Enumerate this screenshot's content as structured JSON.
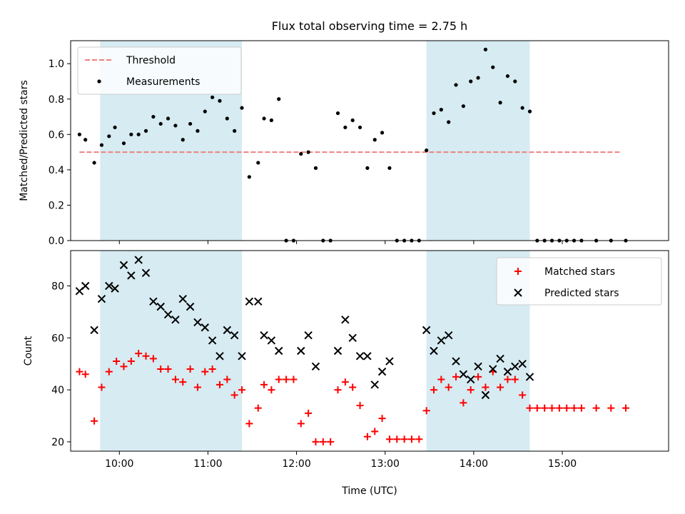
{
  "title": "Flux total observing time = 2.75 h",
  "colors": {
    "shade": "#add8e6",
    "threshold": "#f08080",
    "matched": "#ff0000",
    "predicted": "#000000",
    "measurement": "#000000"
  },
  "chart_data": [
    {
      "type": "scatter",
      "ylabel": "Matched/Predicted stars",
      "ylim": [
        0,
        1.13
      ],
      "xlim": [
        "09:27",
        "16:12"
      ],
      "yticks": [
        "0.0",
        "0.2",
        "0.4",
        "0.6",
        "0.8",
        "1.0"
      ],
      "legend_position": "upper-left",
      "shaded_intervals": [
        [
          "09:47",
          "11:23"
        ],
        [
          "13:28",
          "14:38"
        ]
      ],
      "threshold": {
        "name": "Threshold",
        "value": 0.5,
        "x_range": [
          "09:33",
          "15:40"
        ],
        "style": "dashed"
      },
      "series": [
        {
          "name": "Measurements",
          "points": [
            [
              "09:33",
              0.6
            ],
            [
              "09:37",
              0.57
            ],
            [
              "09:43",
              0.44
            ],
            [
              "09:48",
              0.54
            ],
            [
              "09:53",
              0.59
            ],
            [
              "09:57",
              0.64
            ],
            [
              "10:03",
              0.55
            ],
            [
              "10:08",
              0.6
            ],
            [
              "10:13",
              0.6
            ],
            [
              "10:18",
              0.62
            ],
            [
              "10:23",
              0.7
            ],
            [
              "10:28",
              0.66
            ],
            [
              "10:33",
              0.69
            ],
            [
              "10:38",
              0.65
            ],
            [
              "10:43",
              0.57
            ],
            [
              "10:48",
              0.66
            ],
            [
              "10:53",
              0.62
            ],
            [
              "10:58",
              0.73
            ],
            [
              "11:03",
              0.81
            ],
            [
              "11:08",
              0.79
            ],
            [
              "11:13",
              0.69
            ],
            [
              "11:18",
              0.62
            ],
            [
              "11:23",
              0.75
            ],
            [
              "11:28",
              0.36
            ],
            [
              "11:34",
              0.44
            ],
            [
              "11:38",
              0.69
            ],
            [
              "11:43",
              0.68
            ],
            [
              "11:48",
              0.8
            ],
            [
              "11:53",
              0.0
            ],
            [
              "11:58",
              0.0
            ],
            [
              "12:03",
              0.49
            ],
            [
              "12:08",
              0.5
            ],
            [
              "12:13",
              0.41
            ],
            [
              "12:18",
              0.0
            ],
            [
              "12:23",
              0.0
            ],
            [
              "12:28",
              0.72
            ],
            [
              "12:33",
              0.64
            ],
            [
              "12:38",
              0.68
            ],
            [
              "12:43",
              0.64
            ],
            [
              "12:48",
              0.41
            ],
            [
              "12:53",
              0.57
            ],
            [
              "12:58",
              0.61
            ],
            [
              "13:03",
              0.41
            ],
            [
              "13:08",
              0.0
            ],
            [
              "13:13",
              0.0
            ],
            [
              "13:18",
              0.0
            ],
            [
              "13:23",
              0.0
            ],
            [
              "13:28",
              0.51
            ],
            [
              "13:33",
              0.72
            ],
            [
              "13:38",
              0.74
            ],
            [
              "13:43",
              0.67
            ],
            [
              "13:48",
              0.88
            ],
            [
              "13:53",
              0.76
            ],
            [
              "13:58",
              0.9
            ],
            [
              "14:03",
              0.92
            ],
            [
              "14:08",
              1.08
            ],
            [
              "14:13",
              0.98
            ],
            [
              "14:18",
              0.78
            ],
            [
              "14:23",
              0.93
            ],
            [
              "14:28",
              0.9
            ],
            [
              "14:33",
              0.75
            ],
            [
              "14:38",
              0.73
            ],
            [
              "14:43",
              0.0
            ],
            [
              "14:48",
              0.0
            ],
            [
              "14:53",
              0.0
            ],
            [
              "14:58",
              0.0
            ],
            [
              "15:03",
              0.0
            ],
            [
              "15:08",
              0.0
            ],
            [
              "15:13",
              0.0
            ],
            [
              "15:23",
              0.0
            ],
            [
              "15:33",
              0.0
            ],
            [
              "15:43",
              0.0
            ]
          ]
        }
      ]
    },
    {
      "type": "scatter",
      "ylabel": "Count",
      "xlabel": "Time (UTC)",
      "ylim": [
        16.4,
        93.6
      ],
      "xlim": [
        "09:27",
        "16:12"
      ],
      "yticks": [
        "20",
        "40",
        "60",
        "80"
      ],
      "xticks": [
        "10:00",
        "11:00",
        "12:00",
        "13:00",
        "14:00",
        "15:00"
      ],
      "legend_position": "upper-right",
      "shaded_intervals": [
        [
          "09:47",
          "11:23"
        ],
        [
          "13:28",
          "14:38"
        ]
      ],
      "series": [
        {
          "name": "Matched stars",
          "marker": "+",
          "points": [
            [
              "09:33",
              47
            ],
            [
              "09:37",
              46
            ],
            [
              "09:43",
              28
            ],
            [
              "09:48",
              41
            ],
            [
              "09:53",
              47
            ],
            [
              "09:58",
              51
            ],
            [
              "10:03",
              49
            ],
            [
              "10:08",
              51
            ],
            [
              "10:13",
              54
            ],
            [
              "10:18",
              53
            ],
            [
              "10:23",
              52
            ],
            [
              "10:28",
              48
            ],
            [
              "10:33",
              48
            ],
            [
              "10:38",
              44
            ],
            [
              "10:43",
              43
            ],
            [
              "10:48",
              48
            ],
            [
              "10:53",
              41
            ],
            [
              "10:58",
              47
            ],
            [
              "11:03",
              48
            ],
            [
              "11:08",
              42
            ],
            [
              "11:13",
              44
            ],
            [
              "11:18",
              38
            ],
            [
              "11:23",
              40
            ],
            [
              "11:28",
              27
            ],
            [
              "11:34",
              33
            ],
            [
              "11:38",
              42
            ],
            [
              "11:43",
              40
            ],
            [
              "11:48",
              44
            ],
            [
              "11:53",
              44
            ],
            [
              "11:58",
              44
            ],
            [
              "12:03",
              27
            ],
            [
              "12:08",
              31
            ],
            [
              "12:13",
              20
            ],
            [
              "12:18",
              20
            ],
            [
              "12:23",
              20
            ],
            [
              "12:28",
              40
            ],
            [
              "12:33",
              43
            ],
            [
              "12:38",
              41
            ],
            [
              "12:43",
              34
            ],
            [
              "12:48",
              22
            ],
            [
              "12:53",
              24
            ],
            [
              "12:58",
              29
            ],
            [
              "13:03",
              21
            ],
            [
              "13:08",
              21
            ],
            [
              "13:13",
              21
            ],
            [
              "13:18",
              21
            ],
            [
              "13:23",
              21
            ],
            [
              "13:28",
              32
            ],
            [
              "13:33",
              40
            ],
            [
              "13:38",
              44
            ],
            [
              "13:43",
              41
            ],
            [
              "13:48",
              45
            ],
            [
              "13:53",
              35
            ],
            [
              "13:58",
              40
            ],
            [
              "14:03",
              45
            ],
            [
              "14:08",
              41
            ],
            [
              "14:13",
              47
            ],
            [
              "14:18",
              41
            ],
            [
              "14:23",
              44
            ],
            [
              "14:28",
              44
            ],
            [
              "14:33",
              38
            ],
            [
              "14:38",
              33
            ],
            [
              "14:43",
              33
            ],
            [
              "14:48",
              33
            ],
            [
              "14:53",
              33
            ],
            [
              "14:58",
              33
            ],
            [
              "15:03",
              33
            ],
            [
              "15:08",
              33
            ],
            [
              "15:13",
              33
            ],
            [
              "15:23",
              33
            ],
            [
              "15:33",
              33
            ],
            [
              "15:43",
              33
            ]
          ]
        },
        {
          "name": "Predicted stars",
          "marker": "x",
          "points": [
            [
              "09:33",
              78
            ],
            [
              "09:37",
              80
            ],
            [
              "09:43",
              63
            ],
            [
              "09:48",
              75
            ],
            [
              "09:53",
              80
            ],
            [
              "09:57",
              79
            ],
            [
              "10:03",
              88
            ],
            [
              "10:08",
              84
            ],
            [
              "10:13",
              90
            ],
            [
              "10:18",
              85
            ],
            [
              "10:23",
              74
            ],
            [
              "10:28",
              72
            ],
            [
              "10:33",
              69
            ],
            [
              "10:38",
              67
            ],
            [
              "10:43",
              75
            ],
            [
              "10:48",
              72
            ],
            [
              "10:53",
              66
            ],
            [
              "10:58",
              64
            ],
            [
              "11:03",
              59
            ],
            [
              "11:08",
              53
            ],
            [
              "11:13",
              63
            ],
            [
              "11:18",
              61
            ],
            [
              "11:23",
              53
            ],
            [
              "11:28",
              74
            ],
            [
              "11:34",
              74
            ],
            [
              "11:38",
              61
            ],
            [
              "11:43",
              59
            ],
            [
              "11:48",
              55
            ],
            [
              "12:03",
              55
            ],
            [
              "12:08",
              61
            ],
            [
              "12:13",
              49
            ],
            [
              "12:28",
              55
            ],
            [
              "12:33",
              67
            ],
            [
              "12:38",
              60
            ],
            [
              "12:43",
              53
            ],
            [
              "12:48",
              53
            ],
            [
              "12:53",
              42
            ],
            [
              "12:58",
              47
            ],
            [
              "13:03",
              51
            ],
            [
              "13:28",
              63
            ],
            [
              "13:33",
              55
            ],
            [
              "13:38",
              59
            ],
            [
              "13:43",
              61
            ],
            [
              "13:48",
              51
            ],
            [
              "13:53",
              46
            ],
            [
              "13:58",
              44
            ],
            [
              "14:03",
              49
            ],
            [
              "14:08",
              38
            ],
            [
              "14:13",
              48
            ],
            [
              "14:18",
              52
            ],
            [
              "14:23",
              47
            ],
            [
              "14:28",
              49
            ],
            [
              "14:33",
              50
            ],
            [
              "14:38",
              45
            ]
          ]
        }
      ]
    }
  ]
}
